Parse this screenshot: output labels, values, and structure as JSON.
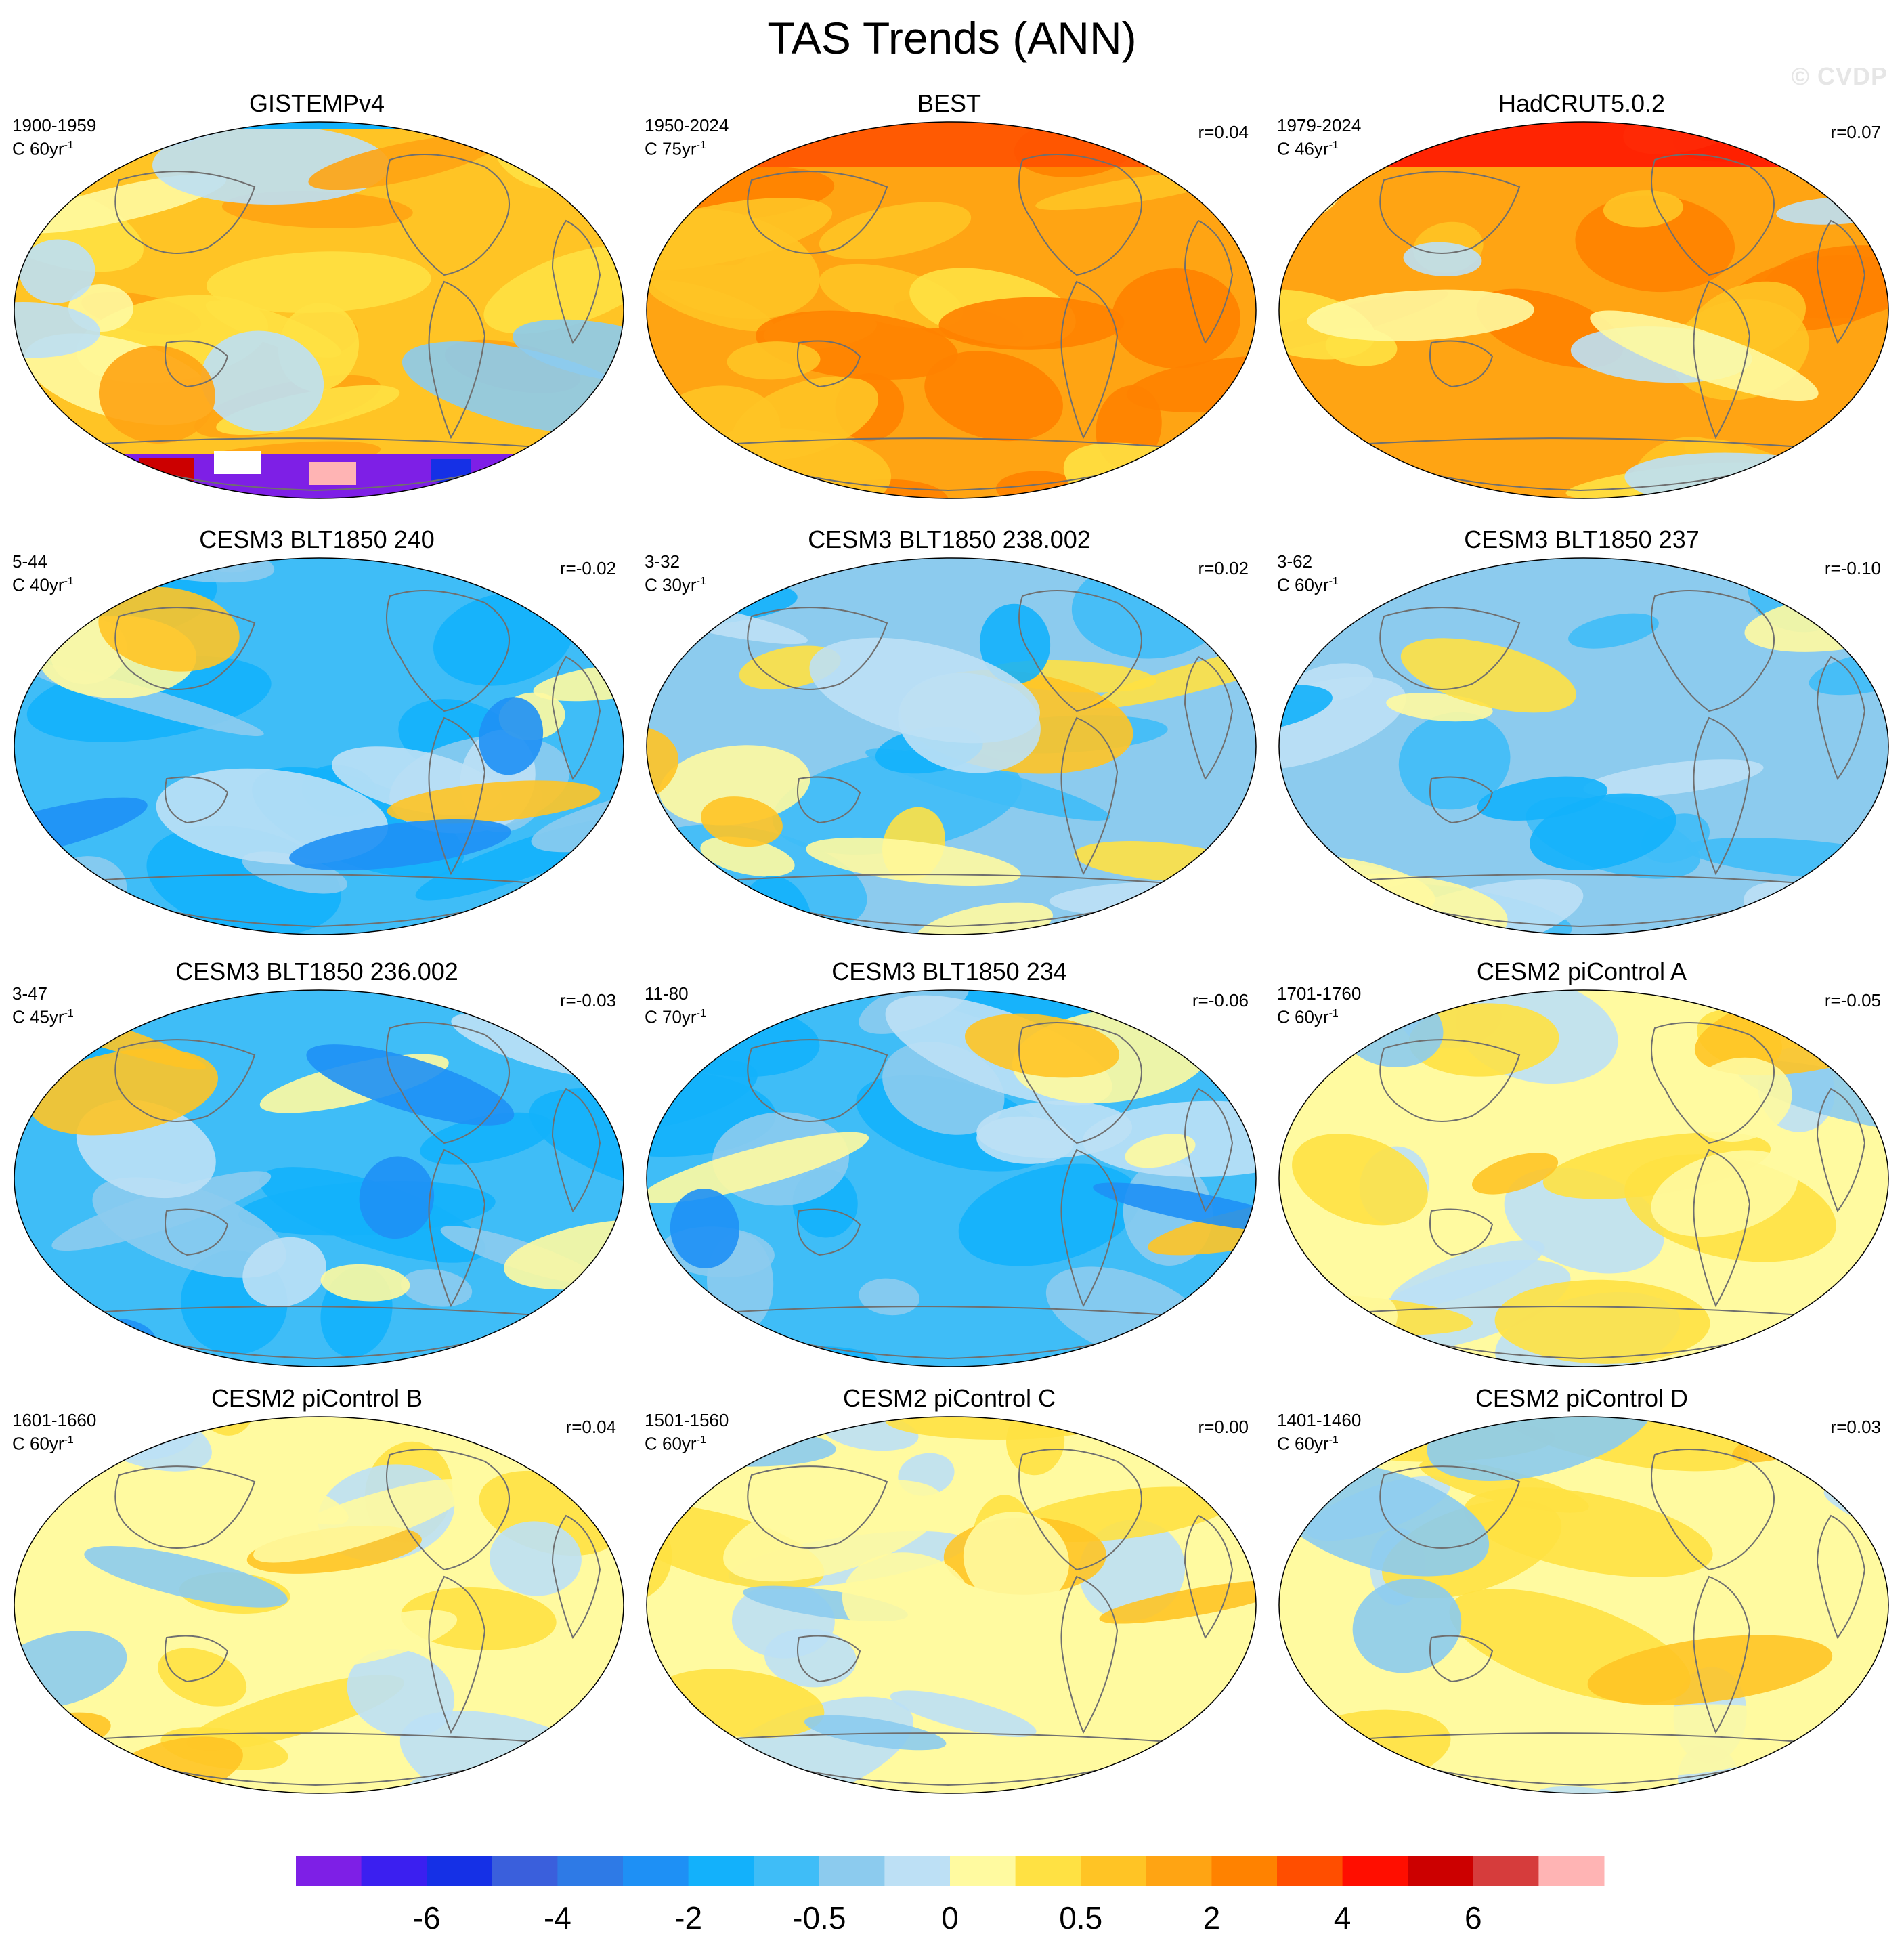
{
  "title": "TAS Trends (ANN)",
  "watermark": "© CVDP",
  "units_prefix": "C",
  "panels": [
    {
      "title": "GISTEMPv4",
      "period": "1900-1959",
      "length": "60",
      "corr": "",
      "palette": "obs_warm_missing"
    },
    {
      "title": "BEST",
      "period": "1950-2024",
      "length": "75",
      "corr": "r=0.04",
      "palette": "obs_hot"
    },
    {
      "title": "HadCRUT5.0.2",
      "period": "1979-2024",
      "length": "46",
      "corr": "r=0.07",
      "palette": "obs_hotter"
    },
    {
      "title": "CESM3 BLT1850 240",
      "period": "5-44",
      "length": "40",
      "corr": "r=-0.02",
      "palette": "cool"
    },
    {
      "title": "CESM3 BLT1850 238.002",
      "period": "3-32",
      "length": "30",
      "corr": "r=0.02",
      "palette": "mixed_cool"
    },
    {
      "title": "CESM3 BLT1850 237",
      "period": "3-62",
      "length": "60",
      "corr": "r=-0.10",
      "palette": "cool_light"
    },
    {
      "title": "CESM3 BLT1850 236.002",
      "period": "3-47",
      "length": "45",
      "corr": "r=-0.03",
      "palette": "cool"
    },
    {
      "title": "CESM3 BLT1850 234",
      "period": "11-80",
      "length": "70",
      "corr": "r=-0.06",
      "palette": "cool"
    },
    {
      "title": "CESM2 piControl A",
      "period": "1701-1760",
      "length": "60",
      "corr": "r=-0.05",
      "palette": "neutral"
    },
    {
      "title": "CESM2 piControl B",
      "period": "1601-1660",
      "length": "60",
      "corr": "r=0.04",
      "palette": "neutral_warm"
    },
    {
      "title": "CESM2 piControl C",
      "period": "1501-1560",
      "length": "60",
      "corr": "r=0.00",
      "palette": "neutral"
    },
    {
      "title": "CESM2 piControl D",
      "period": "1401-1460",
      "length": "60",
      "corr": "r=0.03",
      "palette": "neutral"
    }
  ],
  "colorbar": {
    "colors": [
      "#7e1fe6",
      "#3b1ff0",
      "#1530e6",
      "#3a5fdc",
      "#2e7ae6",
      "#1e90f5",
      "#13b1fb",
      "#3fbdf7",
      "#8ccbee",
      "#bde0f5",
      "#fffaa0",
      "#ffe143",
      "#ffc425",
      "#ffa413",
      "#ff8200",
      "#ff4e00",
      "#ff0e00",
      "#cc0000",
      "#d63c3c",
      "#ffb4b4"
    ],
    "ticks": [
      {
        "label": "-6",
        "boundary": 2
      },
      {
        "label": "-4",
        "boundary": 4
      },
      {
        "label": "-2",
        "boundary": 6
      },
      {
        "label": "-0.5",
        "boundary": 8
      },
      {
        "label": "0",
        "boundary": 10
      },
      {
        "label": "0.5",
        "boundary": 12
      },
      {
        "label": "2",
        "boundary": 14
      },
      {
        "label": "4",
        "boundary": 16
      },
      {
        "label": "6",
        "boundary": 18
      }
    ]
  }
}
